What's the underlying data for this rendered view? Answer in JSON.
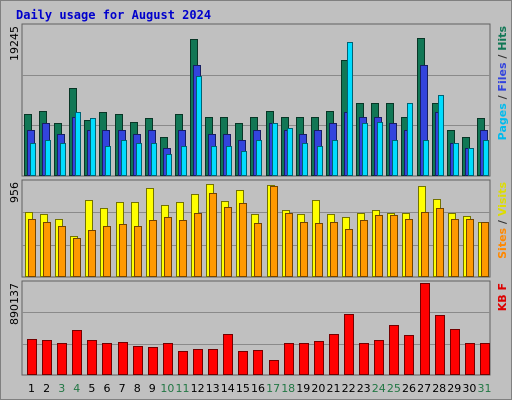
{
  "chart_data": {
    "type": "bar",
    "title": "Daily usage for August 2024",
    "categories": [
      "1",
      "2",
      "3",
      "4",
      "5",
      "6",
      "7",
      "8",
      "9",
      "10",
      "11",
      "12",
      "13",
      "14",
      "15",
      "16",
      "17",
      "18",
      "19",
      "20",
      "21",
      "22",
      "23",
      "24",
      "25",
      "26",
      "27",
      "28",
      "29",
      "30",
      "31"
    ],
    "weekend_days": [
      "3",
      "4",
      "10",
      "11",
      "17",
      "18",
      "24",
      "25",
      "31"
    ],
    "panels": [
      {
        "id": "hits-panel",
        "ymax_label": "19245",
        "ymax": 19245,
        "legend": [
          {
            "text": "Pages",
            "color": "#00bbee"
          },
          {
            "text": " / ",
            "color": "#333333"
          },
          {
            "text": "Files",
            "color": "#3344dd"
          },
          {
            "text": " / ",
            "color": "#333333"
          },
          {
            "text": "Hits",
            "color": "#117755"
          }
        ],
        "series": [
          {
            "name": "Hits",
            "color": "#117755",
            "values": [
              7915,
              8328,
              6748,
              11274,
              7126,
              8150,
              7915,
              6980,
              7395,
              5030,
              7916,
              17610,
              7630,
              7630,
              6748,
              7630,
              8386,
              7630,
              7630,
              7630,
              8386,
              14855,
              9357,
              9357,
              9357,
              7630,
              17750,
              9357,
              5912,
              5030,
              7395
            ]
          },
          {
            "name": "Files",
            "color": "#3344dd",
            "values": [
              5912,
              6748,
              5446,
              7630,
              5912,
              5912,
              5912,
              5446,
              5912,
              3612,
              5912,
              14213,
              5446,
              5446,
              4614,
              5912,
              6748,
              5912,
              5446,
              5912,
              6748,
              8150,
              7630,
              7630,
              6748,
              5912,
              14213,
              8150,
              4208,
              3612,
              5912
            ]
          },
          {
            "name": "Pages",
            "color": "#00ddff",
            "values": [
              4208,
              4614,
              4208,
              8150,
              7395,
              3810,
              4614,
              4208,
              4208,
              2800,
              3810,
              12864,
              3810,
              3810,
              3200,
              4614,
              6748,
              6165,
              4208,
              3810,
              4614,
              17200,
              6748,
              6980,
              4614,
              9357,
              4614,
              10386,
              4208,
              3612,
              4614
            ]
          }
        ]
      },
      {
        "id": "visits-panel",
        "ymax_label": "956",
        "ymax": 956,
        "legend": [
          {
            "text": "Sites",
            "color": "#ff8800"
          },
          {
            "text": " / ",
            "color": "#333333"
          },
          {
            "text": "Visits",
            "color": "#dddd00"
          }
        ],
        "series": [
          {
            "name": "Visits",
            "color": "#ffff00",
            "values": [
              650,
              632,
              588,
              412,
              773,
              690,
              755,
              753,
              894,
              723,
              755,
              833,
              932,
              765,
              872,
              632,
              926,
              675,
              632,
              773,
              632,
              604,
              645,
              673,
              645,
              644,
              917,
              785,
              644,
              616,
              558
            ]
          },
          {
            "name": "Sites",
            "color": "#ff9900",
            "values": [
              588,
              558,
              515,
              388,
              470,
              515,
              530,
              515,
              576,
              602,
              572,
              644,
              850,
              702,
              746,
              544,
              917,
              644,
              558,
              544,
              555,
              488,
              576,
              620,
              620,
              580,
              650,
              690,
              588,
              588,
              558
            ]
          }
        ]
      },
      {
        "id": "kbytes-panel",
        "ymax_label": "890137",
        "ymax": 890137,
        "legend": [
          {
            "text": "KB F",
            "color": "#dd0000"
          }
        ],
        "series": [
          {
            "name": "KB F",
            "color": "#ff0000",
            "values": [
              348000,
              335000,
              305000,
              434000,
              335000,
              310000,
              315000,
              285000,
              270000,
              310000,
              235000,
              250000,
              250000,
              395000,
              232000,
              241000,
              143000,
              305000,
              305000,
              325000,
              401000,
              592000,
              308000,
              336000,
              487000,
              385000,
              890137,
              580000,
              444000,
              305000,
              305000
            ]
          }
        ]
      }
    ]
  }
}
